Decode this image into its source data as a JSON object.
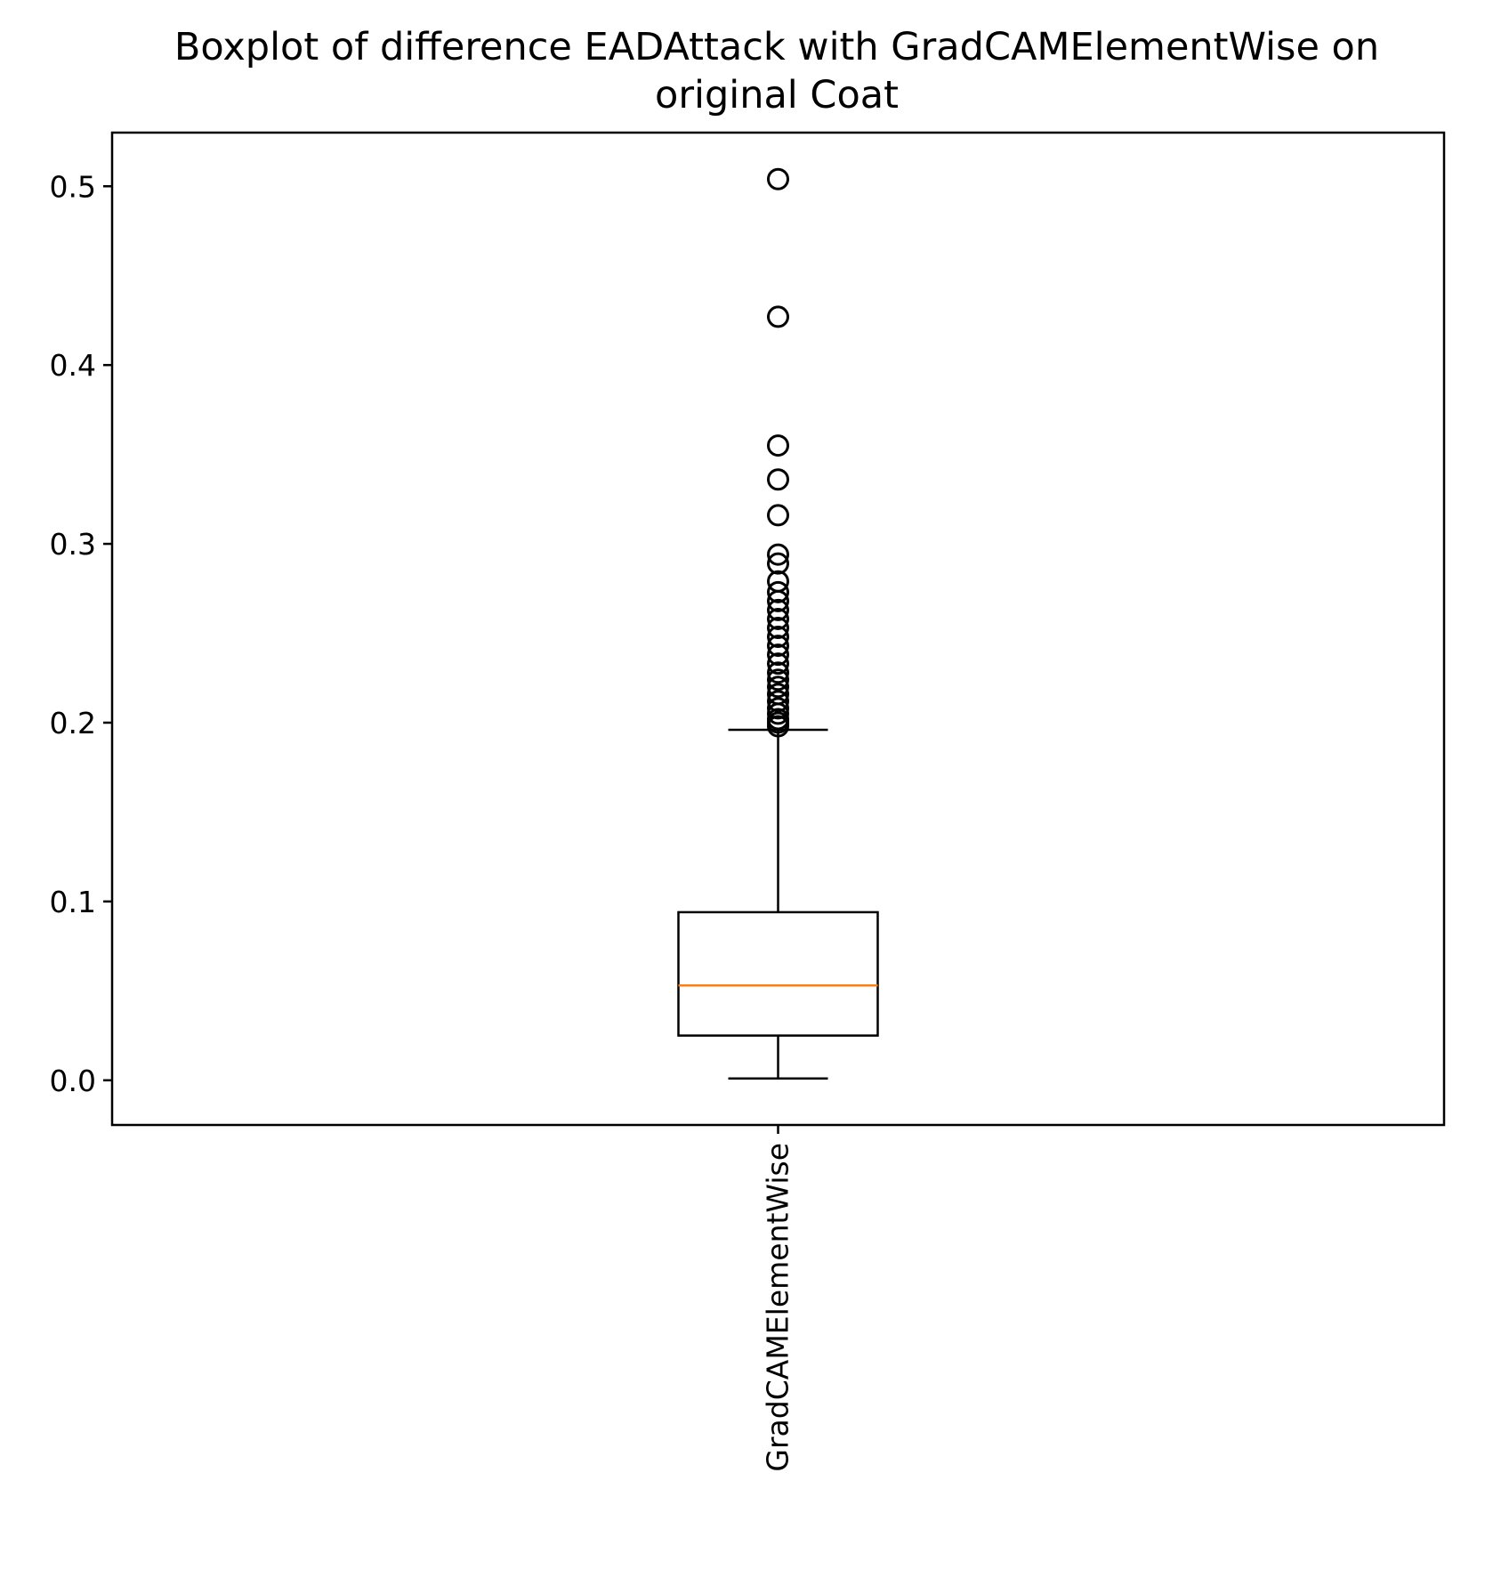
{
  "chart_data": {
    "type": "boxplot",
    "title_line1": "Boxplot of difference EADAttack with GradCAMElementWise on",
    "title_line2": "original Coat",
    "xlabel": "",
    "ylabel": "",
    "ylim": [
      -0.025,
      0.53
    ],
    "yticks": [
      0.0,
      0.1,
      0.2,
      0.3,
      0.4,
      0.5
    ],
    "ytick_labels": [
      "0.0",
      "0.1",
      "0.2",
      "0.3",
      "0.4",
      "0.5"
    ],
    "categories": [
      "GradCAMElementWise"
    ],
    "boxes": [
      {
        "name": "GradCAMElementWise",
        "whisker_low": 0.001,
        "q1": 0.025,
        "median": 0.053,
        "q3": 0.094,
        "whisker_high": 0.196,
        "outliers": [
          0.198,
          0.2,
          0.202,
          0.205,
          0.208,
          0.212,
          0.216,
          0.22,
          0.224,
          0.228,
          0.233,
          0.238,
          0.243,
          0.248,
          0.253,
          0.258,
          0.263,
          0.268,
          0.273,
          0.279,
          0.289,
          0.294,
          0.316,
          0.336,
          0.355,
          0.427,
          0.504
        ]
      }
    ],
    "colors": {
      "box": "#000000",
      "median": "#ff7f0e",
      "outlier_edge": "#000000",
      "background": "#ffffff"
    },
    "grid": false
  }
}
